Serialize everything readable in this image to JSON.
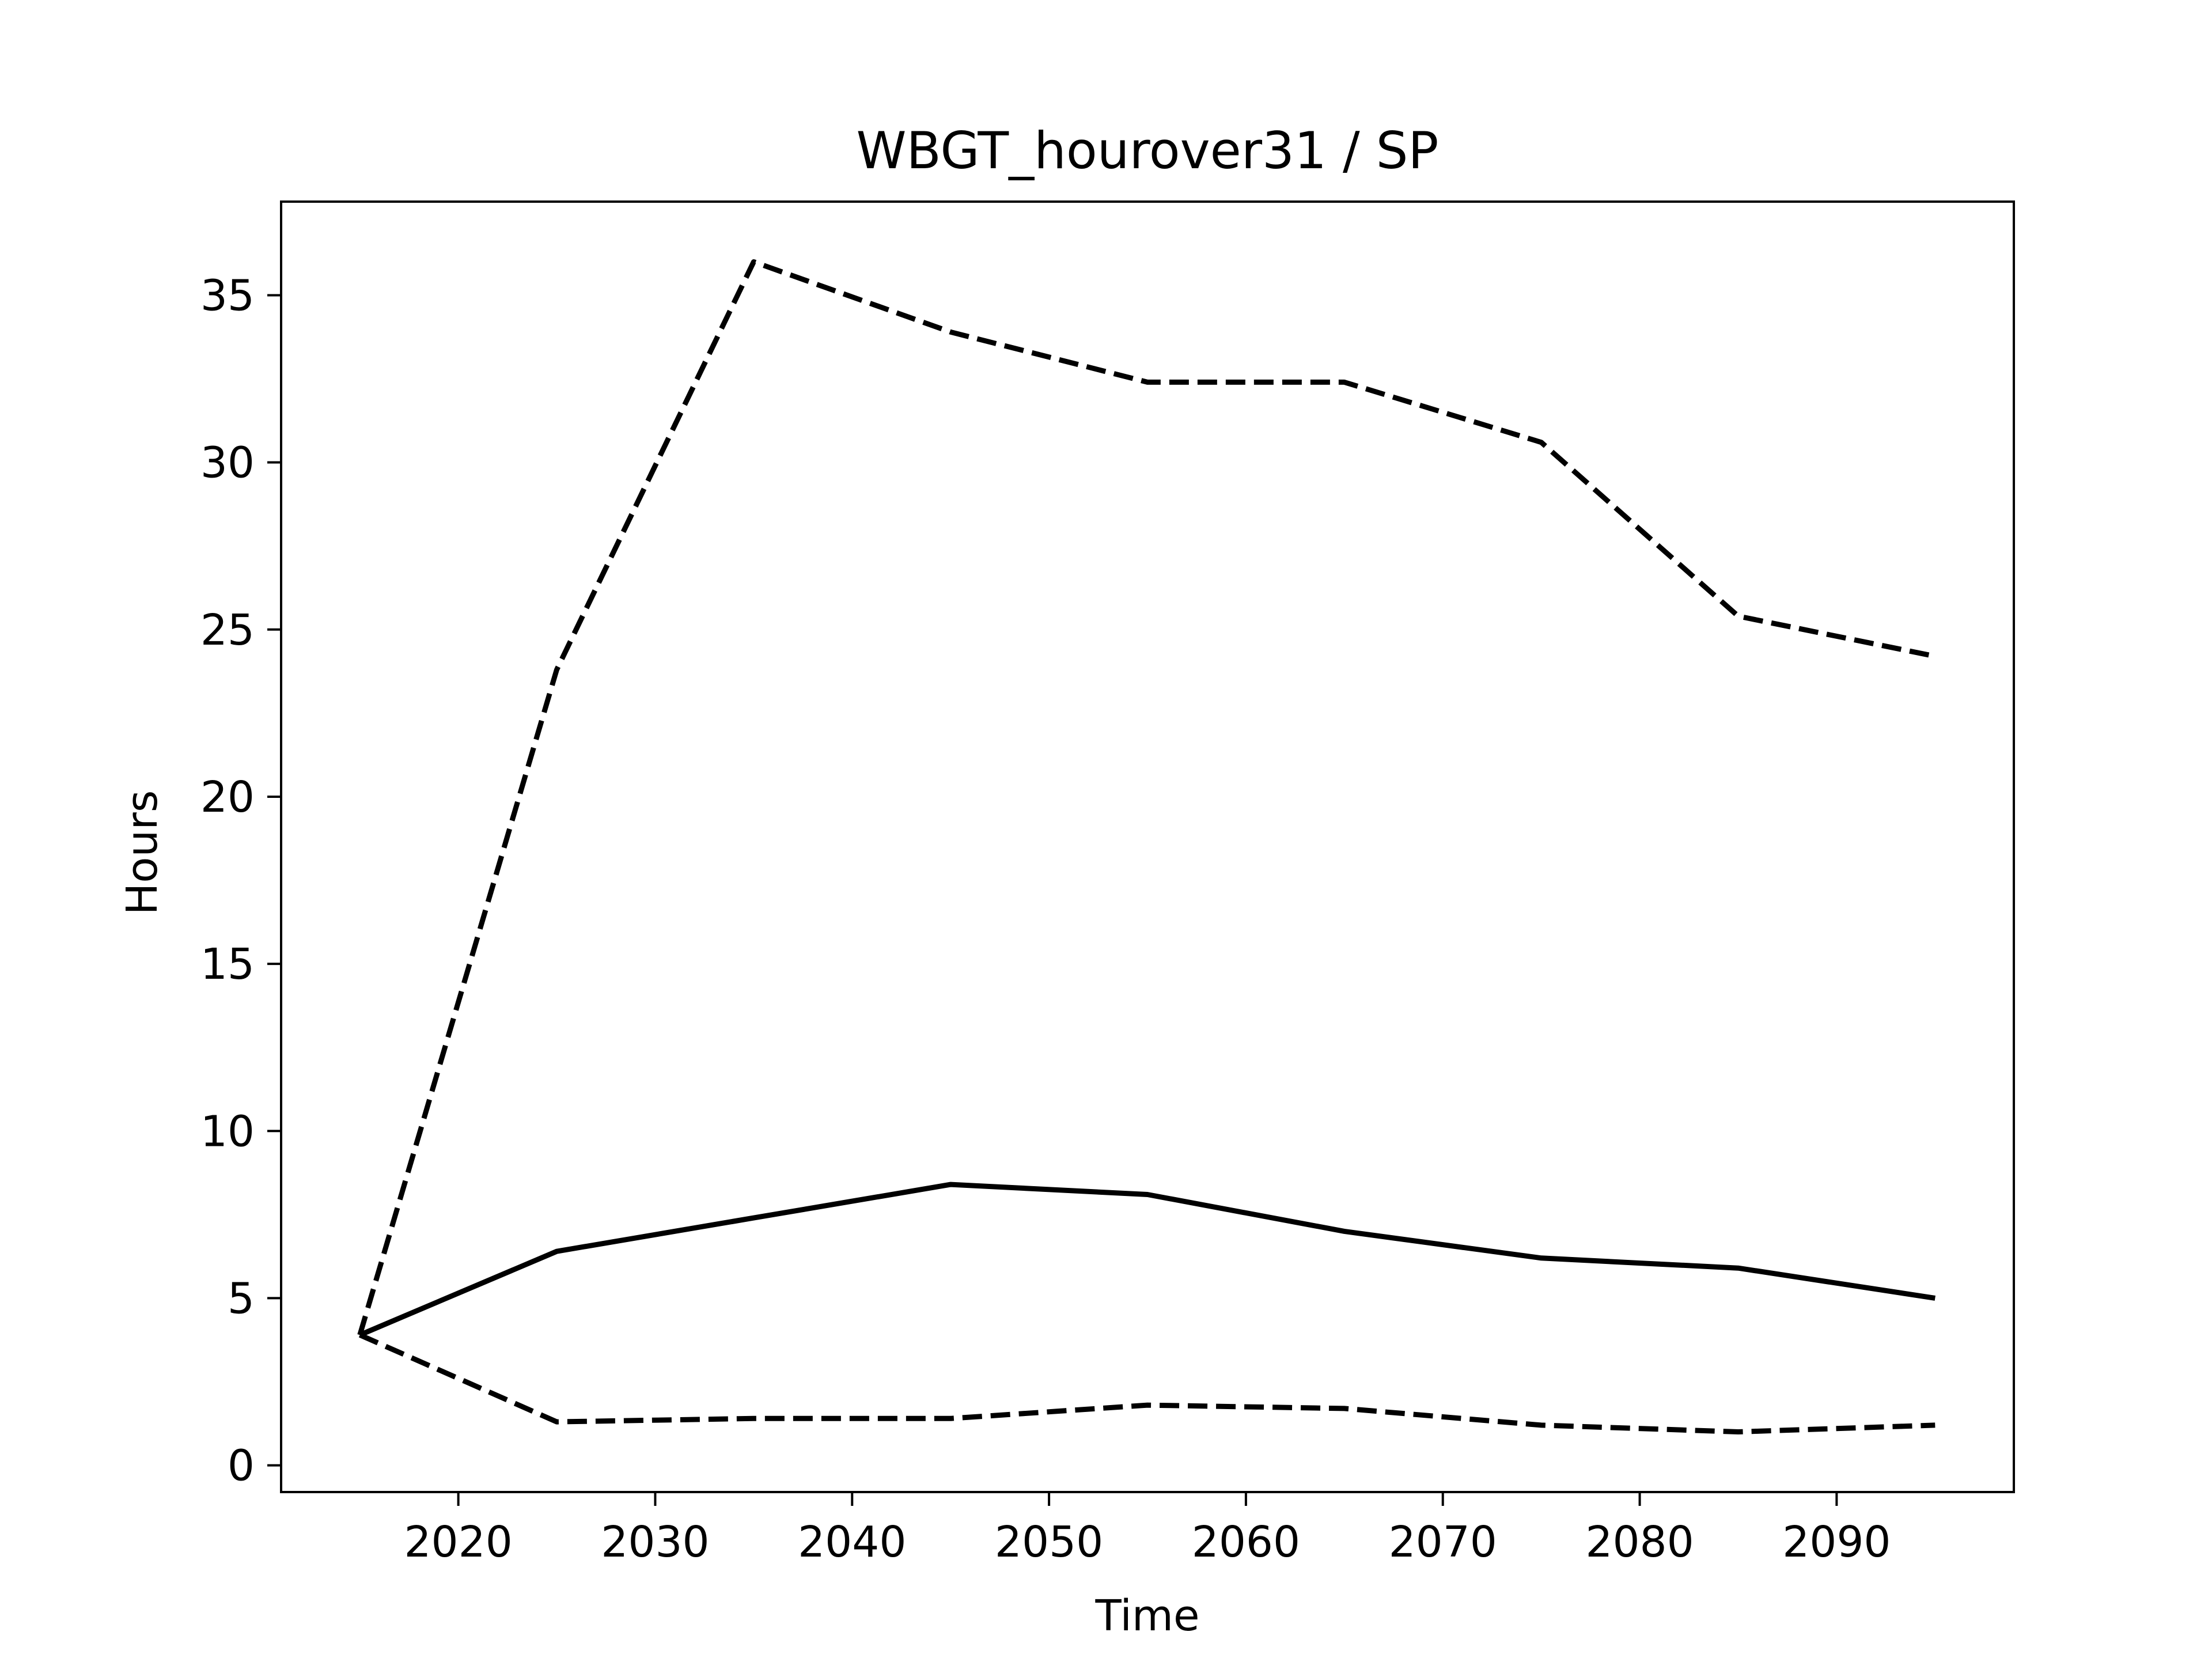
{
  "chart_data": {
    "type": "line",
    "title": "WBGT_hourover31 / SP",
    "xlabel": "Time",
    "ylabel": "Hours",
    "xlim": [
      2011,
      2099
    ],
    "ylim": [
      -0.8,
      37.8
    ],
    "xticks": [
      2020,
      2030,
      2040,
      2050,
      2060,
      2070,
      2080,
      2090
    ],
    "yticks": [
      0,
      5,
      10,
      15,
      20,
      25,
      30,
      35
    ],
    "grid": false,
    "legend": "none",
    "x": [
      2015,
      2025,
      2035,
      2045,
      2055,
      2065,
      2075,
      2085,
      2095
    ],
    "series": [
      {
        "style": "solid",
        "color": "#000000",
        "values": [
          3.9,
          6.4,
          7.4,
          8.4,
          8.1,
          7.0,
          6.2,
          5.9,
          5.0
        ]
      },
      {
        "style": "dashed",
        "color": "#000000",
        "values": [
          3.9,
          23.8,
          36.0,
          33.9,
          32.4,
          32.4,
          30.6,
          25.4,
          24.2
        ]
      },
      {
        "style": "dashed",
        "color": "#000000",
        "values": [
          3.9,
          1.3,
          1.4,
          1.4,
          1.8,
          1.7,
          1.2,
          1.0,
          1.2
        ]
      }
    ]
  }
}
